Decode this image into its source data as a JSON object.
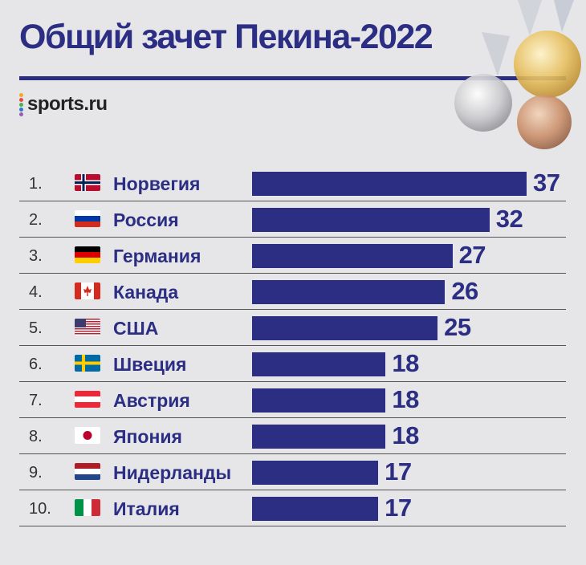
{
  "header": {
    "title": "Общий зачет Пекина-2022",
    "logo_text": "sports.ru"
  },
  "colors": {
    "accent": "#2b2e83",
    "background": "#e6e6e8"
  },
  "chart_data": {
    "type": "bar",
    "orientation": "horizontal",
    "title": "Общий зачет Пекина-2022",
    "ranks": [
      "1.",
      "2.",
      "3.",
      "4.",
      "5.",
      "6.",
      "7.",
      "8.",
      "9.",
      "10."
    ],
    "categories": [
      "Норвегия",
      "Россия",
      "Германия",
      "Канада",
      "США",
      "Швеция",
      "Австрия",
      "Япония",
      "Нидерланды",
      "Италия"
    ],
    "flags": [
      "norway-flag-icon",
      "russia-flag-icon",
      "germany-flag-icon",
      "canada-flag-icon",
      "usa-flag-icon",
      "sweden-flag-icon",
      "austria-flag-icon",
      "japan-flag-icon",
      "netherlands-flag-icon",
      "italy-flag-icon"
    ],
    "values": [
      37,
      32,
      27,
      26,
      25,
      18,
      18,
      18,
      17,
      17
    ],
    "xlim": [
      0,
      37
    ],
    "grid": false,
    "legend": "none"
  }
}
